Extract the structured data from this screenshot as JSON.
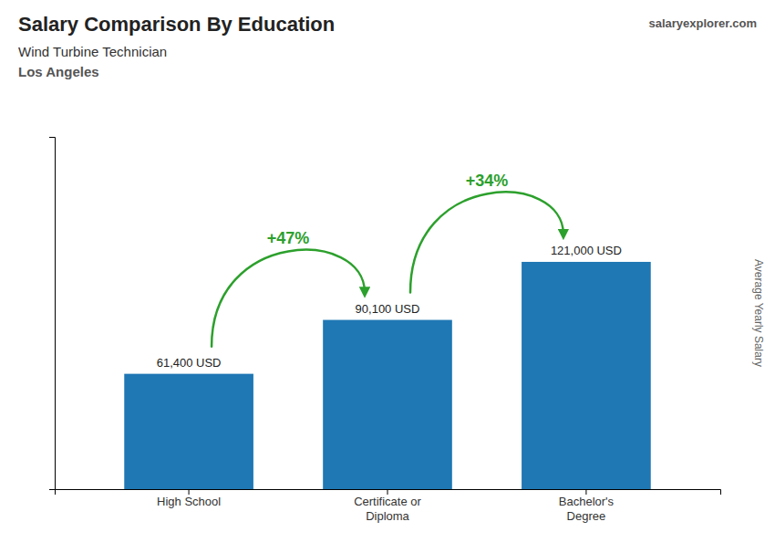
{
  "chart_data": {
    "type": "bar",
    "title": "Salary Comparison By Education",
    "subtitle": [
      "Wind Turbine Technician",
      "Los Angeles"
    ],
    "ylabel": "Average Yearly Salary",
    "categories": [
      "High School",
      "Certificate or\nDiploma",
      "Bachelor's\nDegree"
    ],
    "values": [
      61400,
      90100,
      121000
    ],
    "value_labels": [
      "61,400 USD",
      "90,100 USD",
      "121,000 USD"
    ],
    "data_labels": true,
    "ylim": [
      0,
      187550
    ],
    "yticks": [],
    "tick_labels": "x",
    "annotations": [
      {
        "text": "+47%",
        "from": 0,
        "to": 1
      },
      {
        "text": "+34%",
        "from": 1,
        "to": 2
      },
      {
        "text": "salaryexplorer.com"
      }
    ]
  }
}
